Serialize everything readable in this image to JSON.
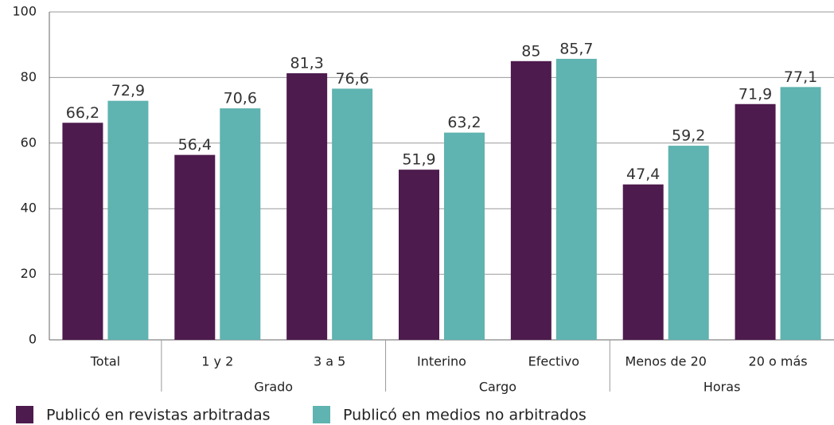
{
  "chart_data": {
    "type": "bar",
    "categories": [
      "Total",
      "1 y 2",
      "3 a 5",
      "Interino",
      "Efectivo",
      "Menos de 20",
      "20 o más"
    ],
    "groups": [
      null,
      "Grado",
      "Grado",
      "Cargo",
      "Cargo",
      "Horas",
      "Horas"
    ],
    "series": [
      {
        "name": "Publicó en revistas arbitradas",
        "color": "#4d1b4d",
        "values": [
          66.2,
          56.4,
          81.3,
          51.9,
          85,
          47.4,
          71.9
        ],
        "value_labels": [
          "66,2",
          "56,4",
          "81,3",
          "51,9",
          "85",
          "47,4",
          "71,9"
        ]
      },
      {
        "name": "Publicó en medios no arbitrados",
        "color": "#5fb3b0",
        "values": [
          72.9,
          70.6,
          76.6,
          63.2,
          85.7,
          59.2,
          77.1
        ],
        "value_labels": [
          "72,9",
          "70,6",
          "76,6",
          "63,2",
          "85,7",
          "59,2",
          "77,1"
        ]
      }
    ],
    "ylim": [
      0,
      100
    ],
    "yticks": [
      0,
      20,
      40,
      60,
      80,
      100
    ],
    "grid": true,
    "legend": "bottom"
  }
}
